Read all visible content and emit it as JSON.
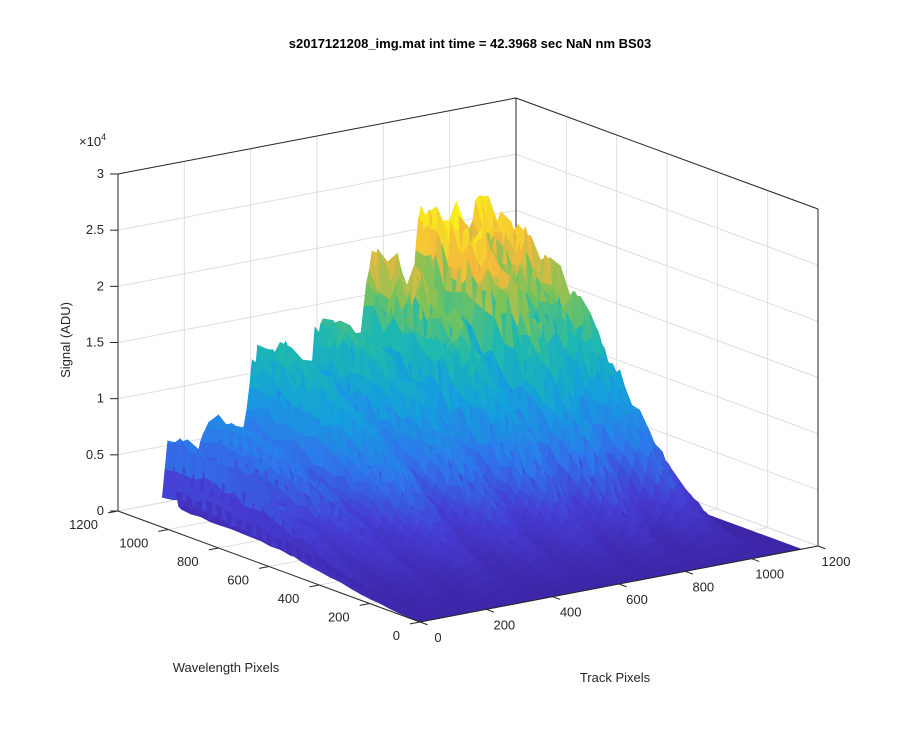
{
  "chart_data": {
    "type": "surface",
    "title": "s2017121208_img.mat int time = 42.3968 sec  NaN nm BS03",
    "xlabel": "Track Pixels",
    "ylabel": "Wavelength Pixels",
    "zlabel": "Signal (ADU)",
    "z_multiplier": "×10",
    "z_multiplier_exponent": "4",
    "xlim": [
      0,
      1200
    ],
    "ylim": [
      0,
      1200
    ],
    "zlim": [
      0,
      30000
    ],
    "x_ticks": [
      "0",
      "200",
      "400",
      "600",
      "800",
      "1000",
      "1200"
    ],
    "y_ticks": [
      "0",
      "200",
      "400",
      "600",
      "800",
      "1000",
      "1200"
    ],
    "z_ticks": [
      "0",
      "0.5",
      "1",
      "1.5",
      "2",
      "2.5",
      "3"
    ],
    "grid": true,
    "colormap": "parula",
    "colors": [
      "#3e26a8",
      "#2e87f7",
      "#1fb8b8",
      "#8cc23f",
      "#f5b93c",
      "#f9fb15"
    ],
    "peaks": [
      {
        "track_center": 20,
        "track_width": 22,
        "peak_signal": 7800
      },
      {
        "track_center": 140,
        "track_width": 60,
        "peak_signal": 9000
      },
      {
        "track_center": 300,
        "track_width": 75,
        "peak_signal": 14500
      },
      {
        "track_center": 480,
        "track_width": 70,
        "peak_signal": 15500
      },
      {
        "track_center": 640,
        "track_width": 65,
        "peak_signal": 20000
      },
      {
        "track_center": 790,
        "track_width": 55,
        "peak_signal": 24500
      },
      {
        "track_center": 950,
        "track_width": 65,
        "peak_signal": 22500
      },
      {
        "track_center": 1030,
        "track_width": 40,
        "peak_signal": 8000
      }
    ],
    "data_extent": {
      "track_max": 1150,
      "wavelength_max": 1024
    }
  }
}
